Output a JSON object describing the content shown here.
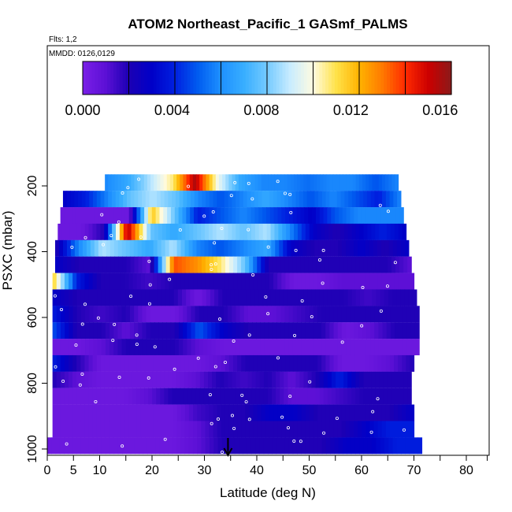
{
  "chart_data": {
    "type": "heatmap",
    "title": "ATOM2 Northeast_Pacific_1 GASmf_PALMS",
    "flights_label": "Flts: 1,2",
    "dates_label": "MMDD: 0126,0129",
    "xlabel": "Latitude (deg N)",
    "ylabel": "PSXC (mbar)",
    "xlim": [
      0,
      84
    ],
    "ylim": [
      1000,
      100
    ],
    "x_ticks": [
      0,
      5,
      10,
      20,
      30,
      40,
      50,
      60,
      70,
      80
    ],
    "y_ticks": [
      200,
      400,
      600,
      800,
      1000
    ],
    "colorbar": {
      "min": 0.0,
      "max": 0.0165,
      "tick_values": [
        0.0,
        0.004,
        0.008,
        0.012,
        0.016
      ],
      "tick_labels": [
        "0.000",
        "0.004",
        "0.008",
        "0.012",
        "0.016"
      ],
      "colors": [
        "#7a1fe6",
        "#5c10d6",
        "#1c00b4",
        "#0000c8",
        "#0020e0",
        "#005cf0",
        "#1e90ff",
        "#38aeff",
        "#74caff",
        "#c8ecff",
        "#fffbe0",
        "#ffe24a",
        "#ffb300",
        "#ff7a00",
        "#ff2a00",
        "#cc0000",
        "#8b1a1a"
      ]
    },
    "marker_latitude": 34.5,
    "rows": [
      {
        "p": 190,
        "lat0": 11,
        "lat1": 67,
        "values": [
          0.006,
          0.007,
          0.009,
          0.011,
          0.016,
          0.01,
          0.007,
          0.006,
          0.006,
          0.0055,
          0.006,
          0.006,
          0.005,
          0.006
        ]
      },
      {
        "p": 240,
        "lat0": 3,
        "lat1": 67.5,
        "values": [
          0.003,
          0.004,
          0.006,
          0.008,
          0.009,
          0.008,
          0.006,
          0.005,
          0.006,
          0.007,
          0.006,
          0.005,
          0.006,
          0.005,
          0.004,
          0.006
        ]
      },
      {
        "p": 290,
        "lat0": 2.5,
        "lat1": 68,
        "values": [
          0.0005,
          0.0005,
          0.0005,
          0.0005,
          0.012,
          0.008,
          0.004,
          0.005,
          0.006,
          0.005,
          0.004,
          0.003,
          0.005,
          0.006,
          0.006,
          0.006
        ]
      },
      {
        "p": 340,
        "lat0": 2,
        "lat1": 68.5,
        "values": [
          0.0005,
          0.0005,
          0.002,
          0.016,
          0.008,
          0.007,
          0.008,
          0.009,
          0.008,
          0.009,
          0.006,
          0.003,
          0.002,
          0.003,
          0.004,
          0.003
        ]
      },
      {
        "p": 390,
        "lat0": 1.5,
        "lat1": 69,
        "values": [
          0.002,
          0.006,
          0.009,
          0.008,
          0.007,
          0.009,
          0.006,
          0.005,
          0.006,
          0.007,
          0.003,
          0.002,
          0.002,
          0.003,
          0.002,
          0.003
        ]
      },
      {
        "p": 440,
        "lat0": 1.5,
        "lat1": 69.5,
        "values": [
          0.003,
          0.002,
          0.002,
          0.002,
          0.001,
          0.014,
          0.013,
          0.011,
          0.008,
          0.002,
          0.002,
          0.002,
          0.002,
          0.002,
          0.002,
          0.001
        ]
      },
      {
        "p": 490,
        "lat0": 1,
        "lat1": 70,
        "values": [
          0.012,
          0.004,
          0.002,
          0.002,
          0.0015,
          0.002,
          0.002,
          0.002,
          0.002,
          0.002,
          0.0005,
          0.0005,
          0.001,
          0.001,
          0.001,
          0.001
        ]
      },
      {
        "p": 540,
        "lat0": 1,
        "lat1": 70.5,
        "values": [
          0.003,
          0.002,
          0.002,
          0.002,
          0.002,
          0.002,
          0.0005,
          0.002,
          0.002,
          0.002,
          0.002,
          0.002,
          0.002,
          0.0015,
          0.002,
          0.002
        ]
      },
      {
        "p": 590,
        "lat0": 1,
        "lat1": 71,
        "values": [
          0.004,
          0.002,
          0.0015,
          0.002,
          0.0005,
          0.0005,
          0.002,
          0.002,
          0.001,
          0.001,
          0.0015,
          0.002,
          0.002,
          0.002,
          0.002,
          0.002
        ]
      },
      {
        "p": 640,
        "lat0": 1,
        "lat1": 71,
        "values": [
          0.005,
          0.002,
          0.002,
          0.001,
          0.002,
          0.002,
          0.005,
          0.003,
          0.002,
          0.002,
          0.002,
          0.002,
          0.0005,
          0.001,
          0.002,
          0.002
        ]
      },
      {
        "p": 690,
        "lat0": 1,
        "lat1": 71,
        "values": [
          0.0005,
          0.0005,
          0.001,
          0.002,
          0.002,
          0.002,
          0.001,
          0.0005,
          0.0005,
          0.0005,
          0.0005,
          0.0005,
          0.0005,
          0.0005,
          0.0005,
          0.0005
        ]
      },
      {
        "p": 740,
        "lat0": 1,
        "lat1": 70,
        "values": [
          0.004,
          0.002,
          0.0005,
          0.0005,
          0.0005,
          0.0005,
          0.0005,
          0.001,
          0.002,
          0.002,
          0.002,
          0.002,
          0.0005,
          0.0005,
          0.001,
          0.002
        ]
      },
      {
        "p": 790,
        "lat0": 1,
        "lat1": 69.5,
        "values": [
          0.002,
          0.001,
          0.0005,
          0.0005,
          0.0005,
          0.0005,
          0.001,
          0.002,
          0.0015,
          0.002,
          0.001,
          0.002,
          0.004,
          0.002,
          0.002,
          0.002
        ]
      },
      {
        "p": 840,
        "lat0": 1,
        "lat1": 69.5,
        "values": [
          0.0005,
          0.0005,
          0.0005,
          0.0005,
          0.001,
          0.002,
          0.002,
          0.002,
          0.002,
          0.002,
          0.001,
          0.001,
          0.0015,
          0.002,
          0.002,
          0.002
        ]
      },
      {
        "p": 890,
        "lat0": 1,
        "lat1": 70,
        "values": [
          0.0005,
          0.0005,
          0.0005,
          0.0005,
          0.0005,
          0.0005,
          0.0015,
          0.002,
          0.002,
          0.003,
          0.003,
          0.002,
          0.002,
          0.002,
          0.002,
          0.003
        ]
      },
      {
        "p": 940,
        "lat0": 1,
        "lat1": 70,
        "values": [
          0.0005,
          0.0005,
          0.0005,
          0.0005,
          0.0005,
          0.0005,
          0.001,
          0.002,
          0.002,
          0.002,
          0.002,
          0.002,
          0.002,
          0.003,
          0.004,
          0.004
        ]
      },
      {
        "p": 990,
        "lat0": 0,
        "lat1": 71.5,
        "values": [
          0.0005,
          0.0005,
          0.0005,
          0.0005,
          0.0005,
          0.0005,
          0.001,
          0.002,
          0.002,
          0.002,
          0.002,
          0.002,
          0.003,
          0.003,
          0.004,
          0.004
        ]
      }
    ]
  }
}
